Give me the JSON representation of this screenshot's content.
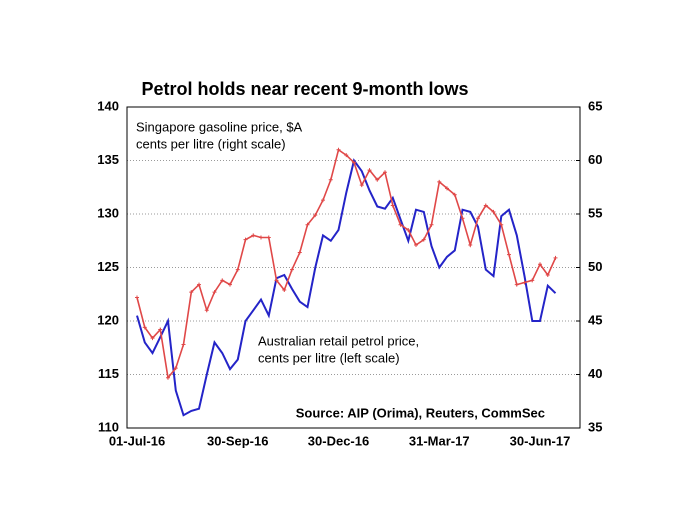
{
  "chart_data": {
    "type": "line",
    "title": "Petrol holds near recent 9-month lows",
    "annotations": [
      [
        "Singapore gasoline price, $A",
        "cents per litre (right scale)"
      ],
      [
        "Australian retail petrol price,",
        "cents per litre (left scale)"
      ],
      [
        "Source: AIP (Orima), Reuters, CommSec"
      ]
    ],
    "categories": [
      "01-Jul-16",
      null,
      null,
      null,
      null,
      null,
      null,
      null,
      null,
      null,
      null,
      null,
      null,
      "30-Sep-16",
      null,
      null,
      null,
      null,
      null,
      null,
      null,
      null,
      null,
      null,
      null,
      null,
      "30-Dec-16",
      null,
      null,
      null,
      null,
      null,
      null,
      null,
      null,
      null,
      null,
      null,
      null,
      "31-Mar-17",
      null,
      null,
      null,
      null,
      null,
      null,
      null,
      null,
      null,
      null,
      null,
      null,
      "30-Jun-17",
      null,
      null
    ],
    "series": [
      {
        "name": "Australian retail petrol price, cents per litre (left scale)",
        "color": "#2424c8",
        "axis": "y",
        "values": [
          120.5,
          118,
          117,
          118.5,
          120,
          113.5,
          111.2,
          111.6,
          111.8,
          115,
          118,
          117,
          115.5,
          116.4,
          120,
          121,
          122,
          120.5,
          124,
          124.3,
          123,
          121.8,
          121.3,
          125,
          128,
          127.5,
          128.5,
          132,
          135,
          134,
          132.2,
          130.7,
          130.5,
          131.5,
          129.5,
          127.5,
          130.4,
          130.2,
          127,
          125,
          126,
          126.6,
          130.4,
          130.2,
          128.8,
          124.8,
          124.2,
          129.8,
          130.4,
          128,
          124.2,
          120,
          120,
          123.3,
          122.6
        ]
      },
      {
        "name": "Singapore gasoline price, $A cents per litre (right scale)",
        "color": "#e04848",
        "axis": "y2",
        "values": [
          47.2,
          44.4,
          43.4,
          44.2,
          39.7,
          40.6,
          42.8,
          47.7,
          48.4,
          46,
          47.7,
          48.8,
          48.4,
          49.8,
          52.6,
          53,
          52.8,
          52.8,
          48.8,
          47.9,
          49.8,
          51.4,
          54,
          54.9,
          56.3,
          58.2,
          61,
          60.5,
          59.8,
          57.7,
          59.1,
          58.2,
          58.9,
          55.8,
          54,
          53.5,
          52.1,
          52.6,
          54,
          58,
          57.4,
          56.8,
          54.6,
          52.1,
          54.6,
          55.8,
          55.2,
          54,
          51.2,
          48.4,
          48.6,
          48.8,
          50.3,
          49.3,
          50.9
        ]
      }
    ],
    "ylim": [
      110,
      140
    ],
    "yticks": [
      110,
      115,
      120,
      125,
      130,
      135,
      140
    ],
    "y2lim": [
      35,
      65
    ],
    "y2ticks": [
      35,
      40,
      45,
      50,
      55,
      60,
      65
    ],
    "grid": true
  }
}
